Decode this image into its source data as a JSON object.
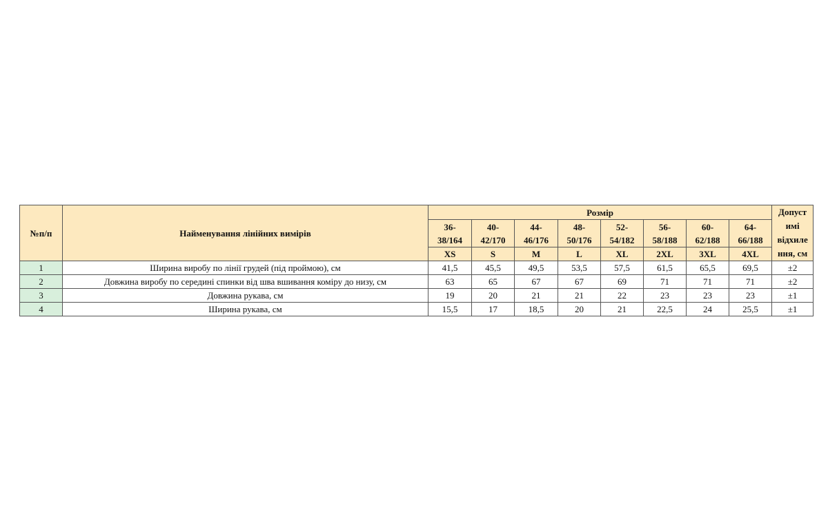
{
  "colors": {
    "header_bg": "#fde9bf",
    "number_col_bg": "#d8efdc",
    "border": "#555555"
  },
  "table": {
    "headers": {
      "number": "№п/п",
      "name": "Найменування лінійних вимірів",
      "size_group": "Розмір",
      "tolerance_lines": [
        "Допуст",
        "имі",
        "відхиле",
        "ння, см"
      ]
    },
    "sizes": [
      {
        "code": [
          "36-",
          "38/164"
        ],
        "label": "XS"
      },
      {
        "code": [
          "40-",
          "42/170"
        ],
        "label": "S"
      },
      {
        "code": [
          "44-",
          "46/176"
        ],
        "label": "M"
      },
      {
        "code": [
          "48-",
          "50/176"
        ],
        "label": "L"
      },
      {
        "code": [
          "52-",
          "54/182"
        ],
        "label": "XL"
      },
      {
        "code": [
          "56-",
          "58/188"
        ],
        "label": "2XL"
      },
      {
        "code": [
          "60-",
          "62/188"
        ],
        "label": "3XL"
      },
      {
        "code": [
          "64-",
          "66/188"
        ],
        "label": "4XL"
      }
    ],
    "rows": [
      {
        "num": "1",
        "name": "Ширина виробу по лінії грудей (під проймою), см",
        "values": [
          "41,5",
          "45,5",
          "49,5",
          "53,5",
          "57,5",
          "61,5",
          "65,5",
          "69,5"
        ],
        "tolerance": "±2"
      },
      {
        "num": "2",
        "name": "Довжина виробу по середині спинки від шва вшивання коміру до низу, см",
        "values": [
          "63",
          "65",
          "67",
          "67",
          "69",
          "71",
          "71",
          "71"
        ],
        "tolerance": "±2"
      },
      {
        "num": "3",
        "name": "Довжина рукава, см",
        "values": [
          "19",
          "20",
          "21",
          "21",
          "22",
          "23",
          "23",
          "23"
        ],
        "tolerance": "±1"
      },
      {
        "num": "4",
        "name": "Ширина рукава, см",
        "values": [
          "15,5",
          "17",
          "18,5",
          "20",
          "21",
          "22,5",
          "24",
          "25,5"
        ],
        "tolerance": "±1"
      }
    ]
  }
}
